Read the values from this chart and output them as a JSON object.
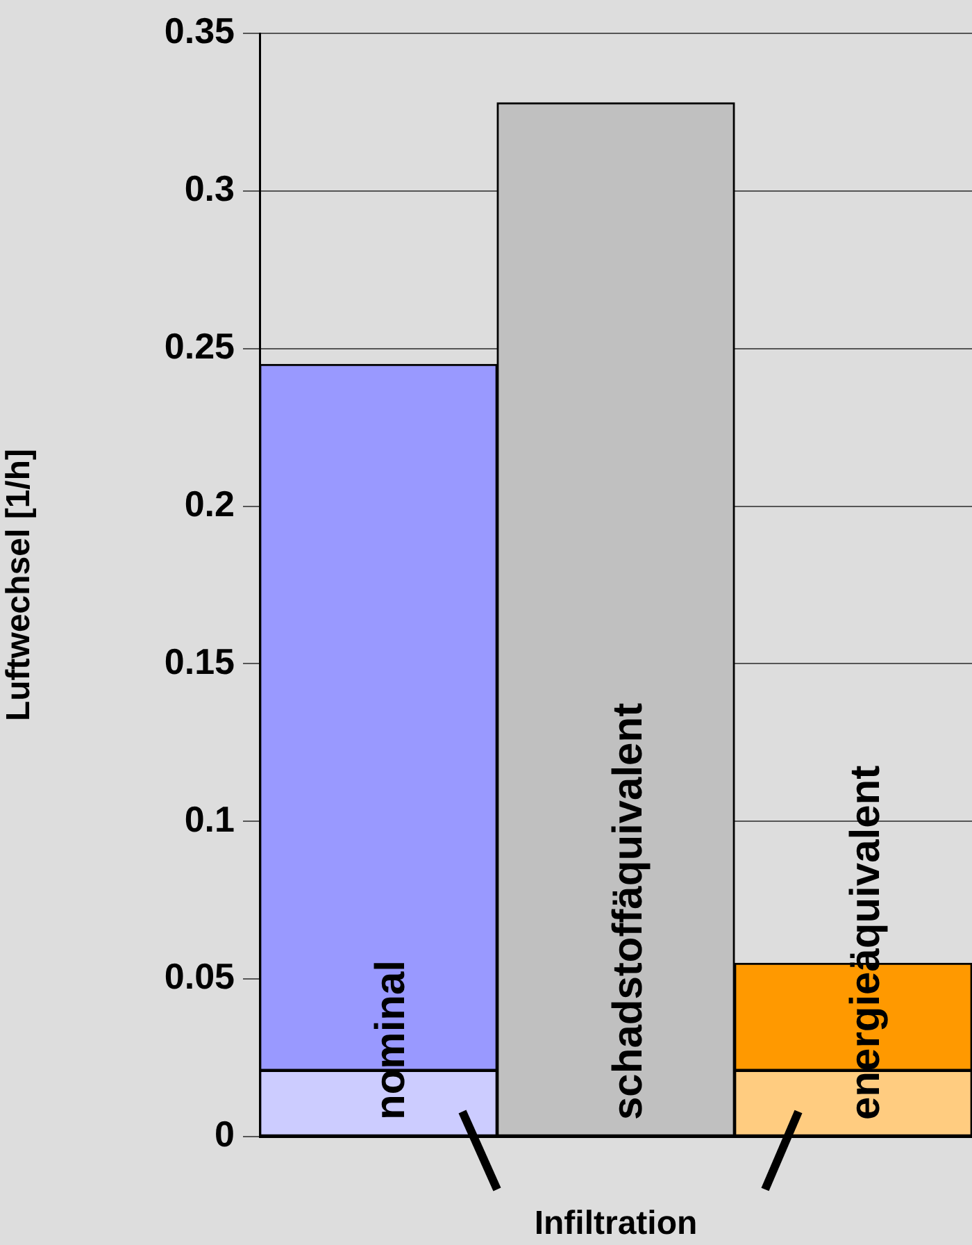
{
  "chart_data": {
    "type": "bar",
    "stacked": true,
    "categories": [
      "nominal",
      "schadstoffäquivalent",
      "energieäquivalent"
    ],
    "series": [
      {
        "colors": [
          "#ccccff",
          "#c0c0c0",
          "#ffcc80"
        ],
        "values": [
          0.021,
          0.328,
          0.021
        ]
      },
      {
        "colors": [
          "#9999ff",
          "#c0c0c0",
          "#ff9900"
        ],
        "values": [
          0.224,
          null,
          0.034
        ]
      }
    ],
    "ylabel": "Luftwechsel [1/h]",
    "ylim": [
      0,
      0.35
    ],
    "yticks": [
      0,
      0.05,
      0.1,
      0.15,
      0.2,
      0.25,
      0.3,
      0.35
    ],
    "grid": "y",
    "annotations": [
      "Infiltration"
    ]
  }
}
